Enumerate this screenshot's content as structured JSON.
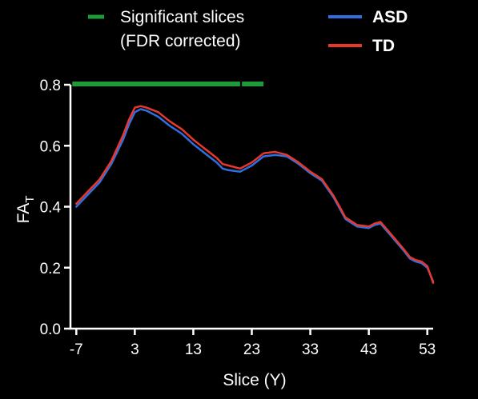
{
  "chart_data": {
    "type": "line",
    "xlabel": "Slice (Y)",
    "ylabel": "FA",
    "ylabel_subscript": "T",
    "xlim": [
      -8,
      54
    ],
    "ylim": [
      0.0,
      0.8
    ],
    "xticks": [
      -7,
      3,
      13,
      23,
      33,
      43,
      53
    ],
    "yticks": [
      0.0,
      0.2,
      0.4,
      0.6,
      0.8
    ],
    "ytick_labels": [
      "0.0",
      "0.2",
      "0.4",
      "0.6",
      "0.8"
    ],
    "legend_position": "top",
    "legend": {
      "significant_line1": "Significant slices",
      "significant_line2": "(FDR corrected)"
    },
    "significant_slices": {
      "color": "#1f9a3a",
      "segments": [
        [
          -7,
          21
        ],
        [
          22,
          25
        ]
      ]
    },
    "series": [
      {
        "name": "ASD",
        "color": "#2f6fe0",
        "x": [
          -7,
          -5,
          -3,
          -1,
          1,
          2,
          3,
          4,
          5,
          7,
          9,
          11,
          13,
          15,
          17,
          18,
          19,
          21,
          23,
          25,
          27,
          29,
          31,
          33,
          35,
          37,
          38,
          39,
          41,
          43,
          44,
          45,
          47,
          49,
          50,
          51,
          52,
          53,
          54
        ],
        "values": [
          0.4,
          0.44,
          0.48,
          0.54,
          0.62,
          0.67,
          0.71,
          0.72,
          0.715,
          0.695,
          0.665,
          0.64,
          0.605,
          0.575,
          0.545,
          0.525,
          0.52,
          0.515,
          0.535,
          0.565,
          0.57,
          0.565,
          0.54,
          0.51,
          0.485,
          0.43,
          0.395,
          0.36,
          0.335,
          0.33,
          0.34,
          0.345,
          0.3,
          0.255,
          0.23,
          0.22,
          0.215,
          0.2,
          0.155
        ]
      },
      {
        "name": "TD",
        "color": "#e8372b",
        "x": [
          -7,
          -5,
          -3,
          -1,
          1,
          2,
          3,
          4,
          5,
          7,
          9,
          11,
          13,
          15,
          17,
          18,
          19,
          21,
          23,
          25,
          27,
          29,
          31,
          33,
          35,
          37,
          38,
          39,
          41,
          43,
          44,
          45,
          47,
          49,
          50,
          51,
          52,
          53,
          54
        ],
        "values": [
          0.41,
          0.45,
          0.49,
          0.55,
          0.635,
          0.685,
          0.725,
          0.73,
          0.725,
          0.71,
          0.68,
          0.655,
          0.62,
          0.59,
          0.56,
          0.54,
          0.535,
          0.525,
          0.545,
          0.575,
          0.58,
          0.57,
          0.545,
          0.515,
          0.49,
          0.435,
          0.4,
          0.365,
          0.34,
          0.335,
          0.345,
          0.35,
          0.305,
          0.26,
          0.235,
          0.225,
          0.22,
          0.205,
          0.15
        ]
      }
    ]
  }
}
